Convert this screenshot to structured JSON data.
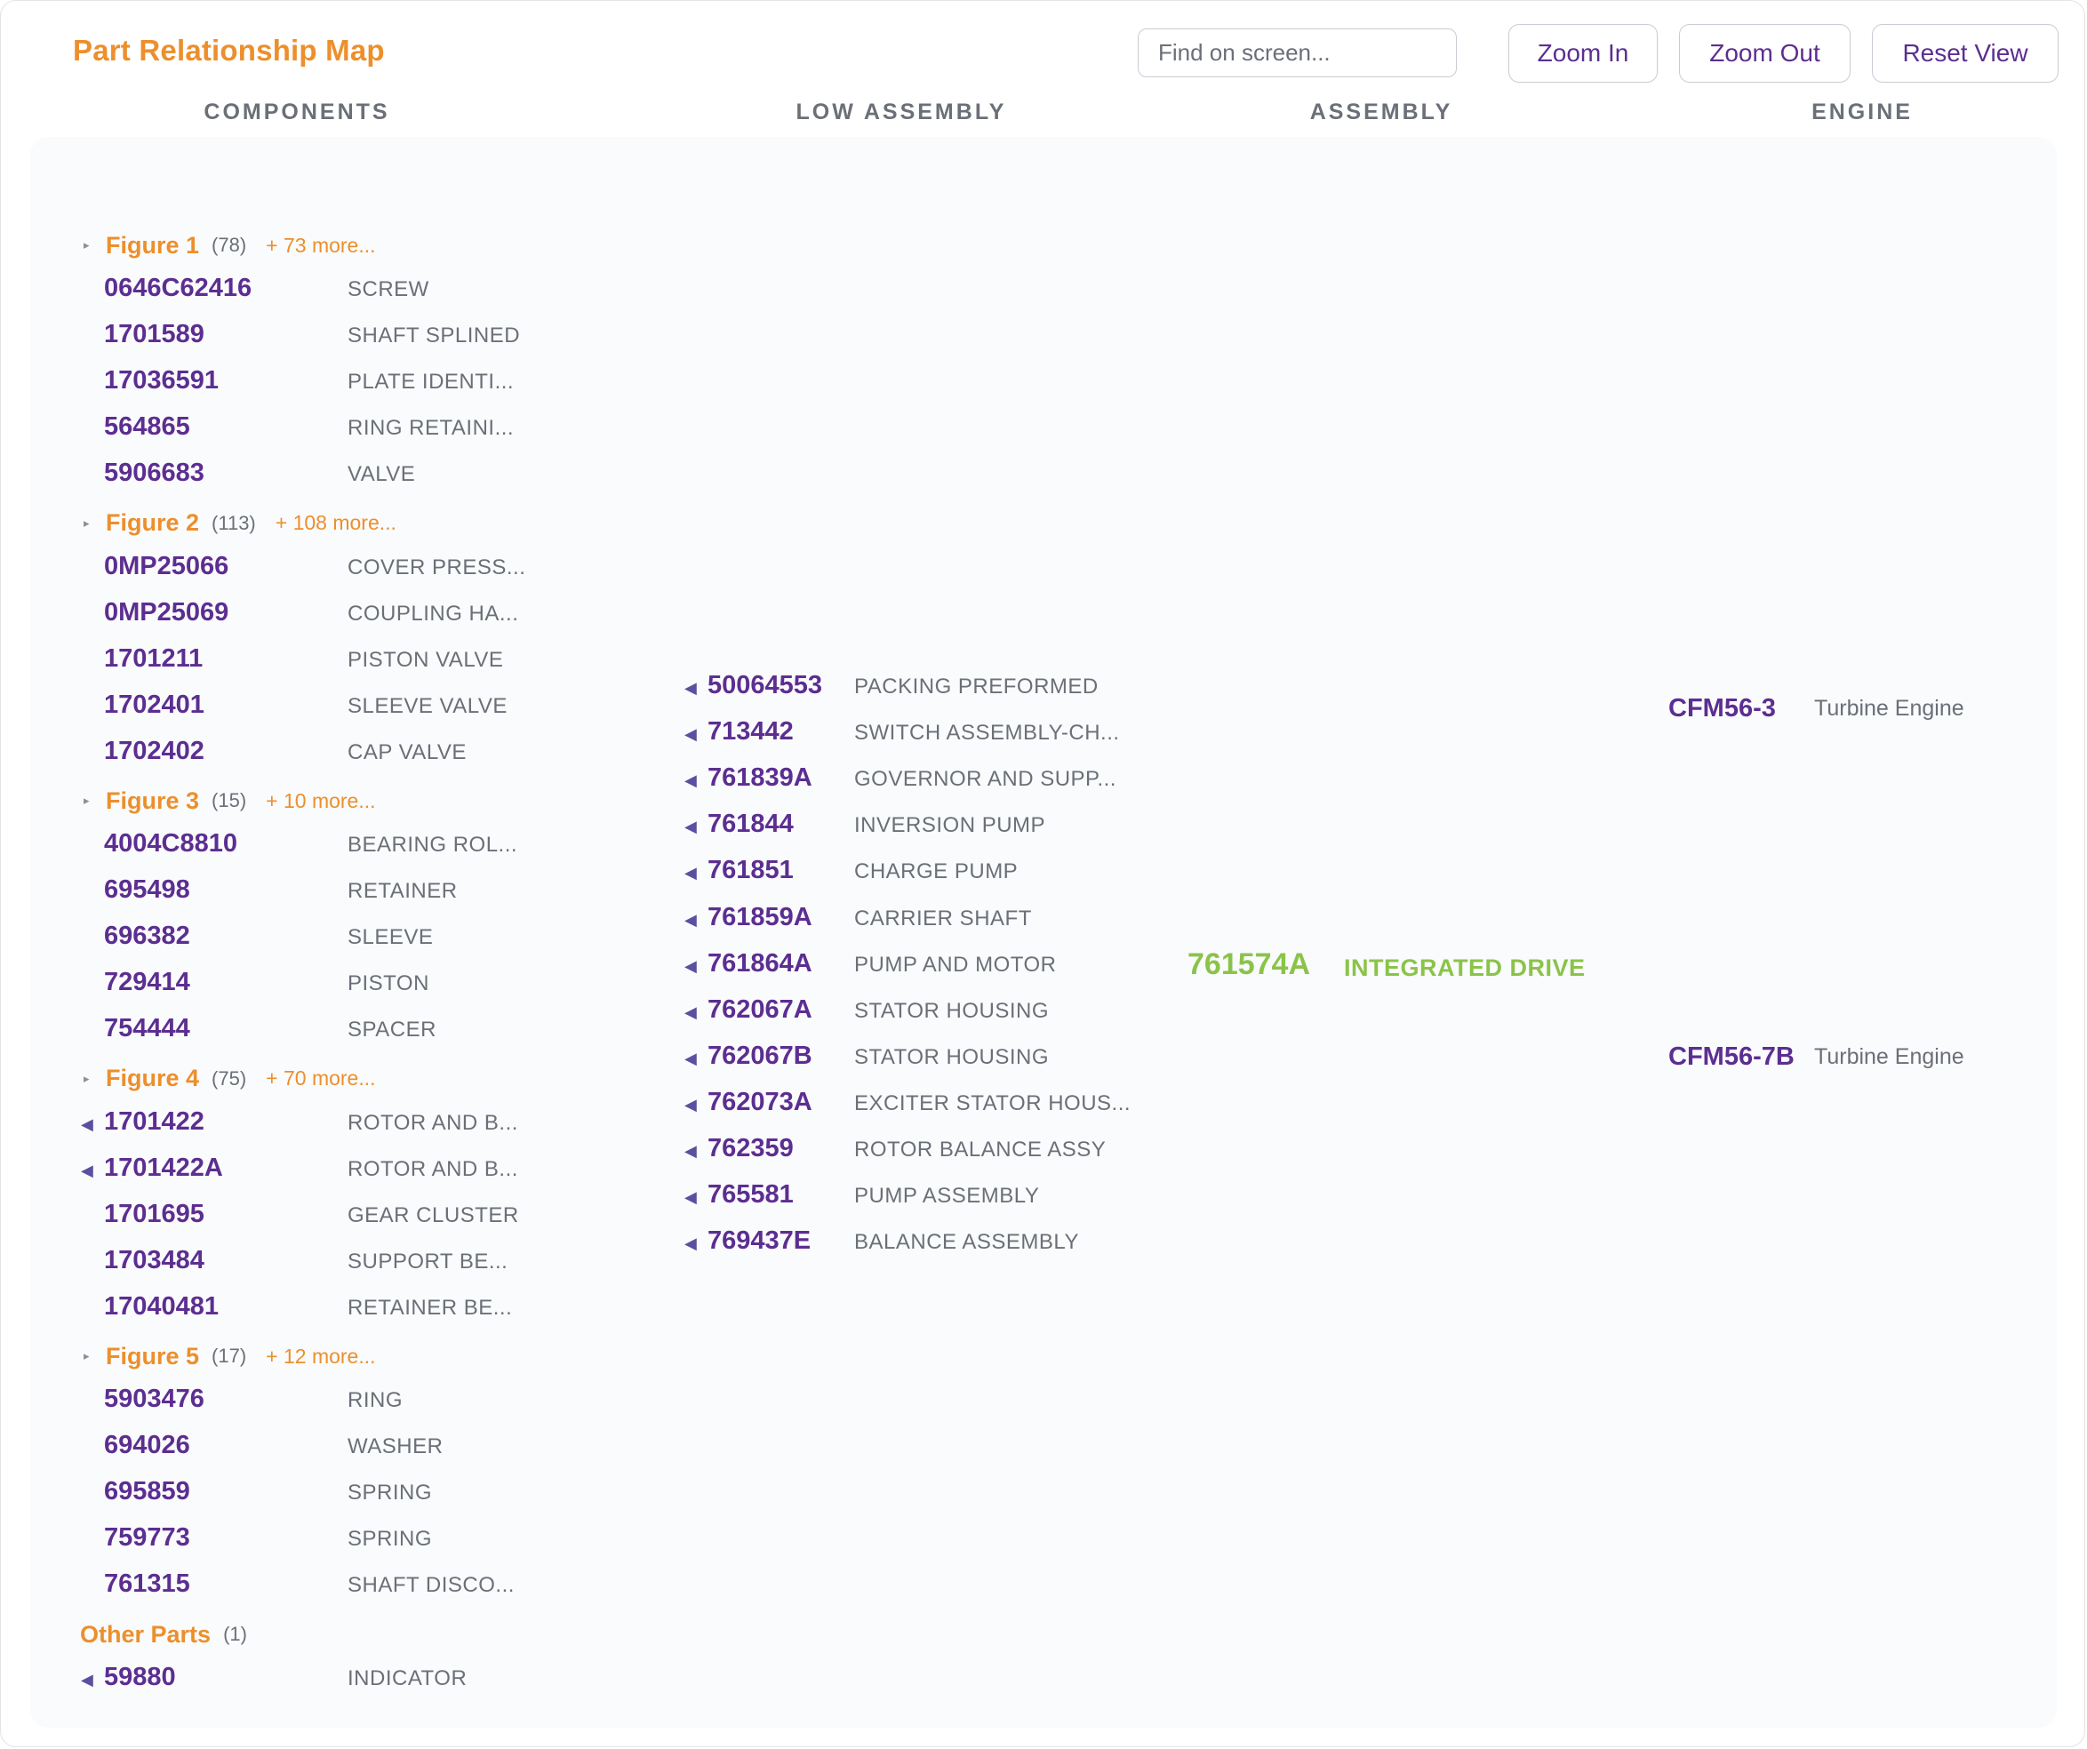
{
  "header": {
    "title": "Part Relationship Map",
    "search_placeholder": "Find on screen...",
    "zoom_in": "Zoom In",
    "zoom_out": "Zoom Out",
    "reset_view": "Reset View"
  },
  "columns": [
    "COMPONENTS",
    "LOW ASSEMBLY",
    "ASSEMBLY",
    "ENGINE"
  ],
  "components": {
    "groups": [
      {
        "name": "Figure 1",
        "count": "(78)",
        "more": "+ 73 more...",
        "parts": [
          {
            "pn": "0646C62416",
            "desc": "SCREW",
            "arrow": false
          },
          {
            "pn": "1701589",
            "desc": "SHAFT SPLINED",
            "arrow": false
          },
          {
            "pn": "17036591",
            "desc": "PLATE IDENTI...",
            "arrow": false
          },
          {
            "pn": "564865",
            "desc": "RING RETAINI...",
            "arrow": false
          },
          {
            "pn": "5906683",
            "desc": "VALVE",
            "arrow": false
          }
        ]
      },
      {
        "name": "Figure 2",
        "count": "(113)",
        "more": "+ 108 more...",
        "parts": [
          {
            "pn": "0MP25066",
            "desc": "COVER PRESS...",
            "arrow": false
          },
          {
            "pn": "0MP25069",
            "desc": "COUPLING HA...",
            "arrow": false
          },
          {
            "pn": "1701211",
            "desc": "PISTON VALVE",
            "arrow": false
          },
          {
            "pn": "1702401",
            "desc": "SLEEVE VALVE",
            "arrow": false
          },
          {
            "pn": "1702402",
            "desc": "CAP VALVE",
            "arrow": false
          }
        ]
      },
      {
        "name": "Figure 3",
        "count": "(15)",
        "more": "+ 10 more...",
        "parts": [
          {
            "pn": "4004C8810",
            "desc": "BEARING ROL...",
            "arrow": false
          },
          {
            "pn": "695498",
            "desc": "RETAINER",
            "arrow": false
          },
          {
            "pn": "696382",
            "desc": "SLEEVE",
            "arrow": false
          },
          {
            "pn": "729414",
            "desc": "PISTON",
            "arrow": false
          },
          {
            "pn": "754444",
            "desc": "SPACER",
            "arrow": false
          }
        ]
      },
      {
        "name": "Figure 4",
        "count": "(75)",
        "more": "+ 70 more...",
        "parts": [
          {
            "pn": "1701422",
            "desc": "ROTOR AND B...",
            "arrow": true
          },
          {
            "pn": "1701422A",
            "desc": "ROTOR AND B...",
            "arrow": true
          },
          {
            "pn": "1701695",
            "desc": "GEAR CLUSTER",
            "arrow": false
          },
          {
            "pn": "1703484",
            "desc": "SUPPORT BE...",
            "arrow": false
          },
          {
            "pn": "17040481",
            "desc": "RETAINER BE...",
            "arrow": false
          }
        ]
      },
      {
        "name": "Figure 5",
        "count": "(17)",
        "more": "+ 12 more...",
        "parts": [
          {
            "pn": "5903476",
            "desc": "RING",
            "arrow": false
          },
          {
            "pn": "694026",
            "desc": "WASHER",
            "arrow": false
          },
          {
            "pn": "695859",
            "desc": "SPRING",
            "arrow": false
          },
          {
            "pn": "759773",
            "desc": "SPRING",
            "arrow": false
          },
          {
            "pn": "761315",
            "desc": "SHAFT DISCO...",
            "arrow": false
          }
        ]
      }
    ],
    "other": {
      "name": "Other Parts",
      "count": "(1)",
      "parts": [
        {
          "pn": "59880",
          "desc": "INDICATOR",
          "arrow": true
        }
      ]
    }
  },
  "low_assembly": [
    {
      "pn": "50064553",
      "desc": "PACKING PREFORMED"
    },
    {
      "pn": "713442",
      "desc": "SWITCH ASSEMBLY-CH..."
    },
    {
      "pn": "761839A",
      "desc": "GOVERNOR AND SUPP..."
    },
    {
      "pn": "761844",
      "desc": "INVERSION PUMP"
    },
    {
      "pn": "761851",
      "desc": "CHARGE PUMP"
    },
    {
      "pn": "761859A",
      "desc": "CARRIER SHAFT"
    },
    {
      "pn": "761864A",
      "desc": "PUMP AND MOTOR"
    },
    {
      "pn": "762067A",
      "desc": "STATOR HOUSING"
    },
    {
      "pn": "762067B",
      "desc": "STATOR HOUSING"
    },
    {
      "pn": "762073A",
      "desc": "EXCITER STATOR HOUS..."
    },
    {
      "pn": "762359",
      "desc": "ROTOR BALANCE ASSY"
    },
    {
      "pn": "765581",
      "desc": "PUMP ASSEMBLY"
    },
    {
      "pn": "769437E",
      "desc": "BALANCE ASSEMBLY"
    }
  ],
  "assembly": {
    "pn": "761574A",
    "desc": "INTEGRATED DRIVE"
  },
  "engines": [
    {
      "pn": "CFM56-3",
      "desc": "Turbine Engine"
    },
    {
      "pn": "CFM56-7B",
      "desc": "Turbine Engine"
    }
  ],
  "colors": {
    "accent_orange": "#ec8f2c",
    "part_purple": "#5c2e91",
    "assembly_green": "#8bc34a",
    "muted_text": "#6b6f78"
  },
  "icons": {
    "expand_toggle": "triangle-right-icon",
    "link_arrow": "triangle-left-icon"
  }
}
